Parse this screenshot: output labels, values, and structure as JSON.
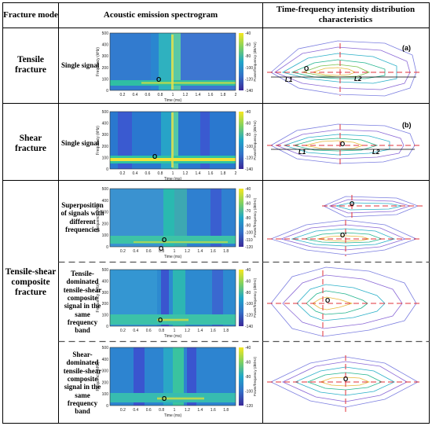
{
  "header": {
    "col1": "Fracture mode",
    "col2": "Acoustic emission spectrogram",
    "col3": "Time-frequency intensity distribution characteristics"
  },
  "rows": [
    {
      "mode": "Tensile fracture",
      "signal": "Single signal",
      "panel_label": "(a)"
    },
    {
      "mode": "Shear fracture",
      "signal": "Single signal",
      "panel_label": "(b)"
    },
    {
      "mode": "Tensile-shear composite fracture",
      "signal": "Superposition of signals with different frequencies"
    },
    {
      "mode": "",
      "signal": "Tensile-dominated tensile-shear composite signal in the same frequency band"
    },
    {
      "mode": "",
      "signal": "Shear-dominated tensile-shear composite signal in the same frequency band"
    }
  ],
  "spectrogram": {
    "ylabel": "Frequency (kHz)",
    "xlabel": "Time (ms)",
    "colorbar_label": "Power/frequency (dB/Hz)",
    "yticks": [
      "500",
      "400",
      "300",
      "200",
      "100",
      "0"
    ],
    "xticks_a": [
      "0.2",
      "0.4",
      "0.6",
      "0.8",
      "1",
      "1.2",
      "1.4",
      "1.6",
      "1.8",
      "2"
    ],
    "xticks_c": [
      "0.2",
      "0.4",
      "0.6",
      "0.8",
      "1",
      "1.2",
      "1.4",
      "1.6",
      "1.8"
    ],
    "cbar_ticks_a": [
      "-40",
      "-60",
      "-80",
      "-100",
      "-120",
      "-140"
    ],
    "cbar_ticks_c": [
      "-40",
      "-50",
      "-60",
      "-70",
      "-80",
      "-90",
      "-100",
      "-110",
      "-120"
    ],
    "cbar_ticks_d": [
      "-40",
      "-60",
      "-80",
      "-100",
      "-120",
      "-140"
    ],
    "cbar_ticks_e": [
      "-40",
      "-60",
      "-80",
      "-100",
      "-120"
    ],
    "origin": "O"
  },
  "diagram": {
    "origin": "O",
    "origin_prime": "O'",
    "l1": "L1",
    "l2": "L2"
  },
  "colors": {
    "grid": "#000000",
    "dashed": "#e0303a",
    "low": "#3d2a9c",
    "mid": "#1fa7c9",
    "high": "#f3e32a"
  }
}
